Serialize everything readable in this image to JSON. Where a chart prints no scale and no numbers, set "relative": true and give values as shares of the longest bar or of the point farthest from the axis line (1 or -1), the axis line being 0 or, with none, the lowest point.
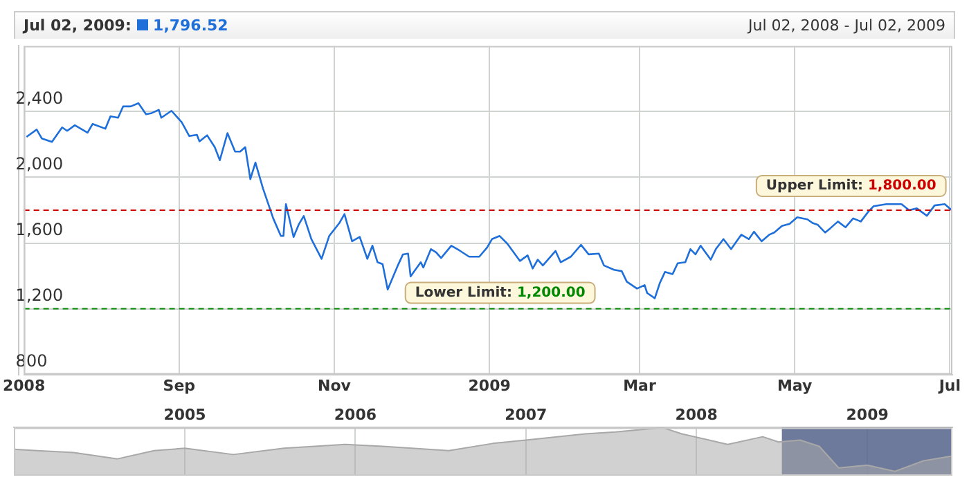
{
  "chart_data": [
    {
      "type": "line",
      "annotations": [
        "Jul 02, 2009:",
        "1,796.52",
        "Jul 02, 2008 - Jul 02, 2009"
      ],
      "x": [
        "2008-07-03",
        "2008-07-07",
        "2008-07-09",
        "2008-07-13",
        "2008-07-17",
        "2008-07-19",
        "2008-07-22",
        "2008-07-27",
        "2008-07-29",
        "2008-08-03",
        "2008-08-05",
        "2008-08-08",
        "2008-08-10",
        "2008-08-13",
        "2008-08-16",
        "2008-08-19",
        "2008-08-21",
        "2008-08-24",
        "2008-08-25",
        "2008-08-29",
        "2008-09-02",
        "2008-09-05",
        "2008-09-08",
        "2008-09-09",
        "2008-09-12",
        "2008-09-15",
        "2008-09-17",
        "2008-09-20",
        "2008-09-23",
        "2008-09-25",
        "2008-09-27",
        "2008-09-29",
        "2008-10-01",
        "2008-10-04",
        "2008-10-08",
        "2008-10-11",
        "2008-10-12",
        "2008-10-13",
        "2008-10-16",
        "2008-10-18",
        "2008-10-20",
        "2008-10-23",
        "2008-10-27",
        "2008-10-30",
        "2008-11-03",
        "2008-11-05",
        "2008-11-08",
        "2008-11-11",
        "2008-11-14",
        "2008-11-16",
        "2008-11-18",
        "2008-11-20",
        "2008-11-22",
        "2008-11-26",
        "2008-11-28",
        "2008-11-30",
        "2008-12-01",
        "2008-12-05",
        "2008-12-06",
        "2008-12-09",
        "2008-12-11",
        "2008-12-13",
        "2008-12-17",
        "2008-12-20",
        "2008-12-24",
        "2008-12-28",
        "2008-12-31",
        "2009-01-02",
        "2009-01-05",
        "2009-01-08",
        "2009-01-13",
        "2009-01-16",
        "2009-01-18",
        "2009-01-20",
        "2009-01-22",
        "2009-01-27",
        "2009-01-29",
        "2009-02-02",
        "2009-02-06",
        "2009-02-09",
        "2009-02-13",
        "2009-02-15",
        "2009-02-19",
        "2009-02-22",
        "2009-02-24",
        "2009-02-28",
        "2009-03-03",
        "2009-03-04",
        "2009-03-07",
        "2009-03-09",
        "2009-03-11",
        "2009-03-14",
        "2009-03-16",
        "2009-03-19",
        "2009-03-21",
        "2009-03-23",
        "2009-03-25",
        "2009-03-29",
        "2009-03-31",
        "2009-04-03",
        "2009-04-06",
        "2009-04-10",
        "2009-04-13",
        "2009-04-15",
        "2009-04-18",
        "2009-04-21",
        "2009-04-23",
        "2009-04-26",
        "2009-04-29",
        "2009-05-02",
        "2009-05-06",
        "2009-05-08",
        "2009-05-10",
        "2009-05-13",
        "2009-05-15",
        "2009-05-18",
        "2009-05-21",
        "2009-05-24",
        "2009-05-27",
        "2009-05-30",
        "2009-06-01",
        "2009-06-06",
        "2009-06-12",
        "2009-06-15",
        "2009-06-18",
        "2009-06-22",
        "2009-06-25",
        "2009-06-29",
        "2009-07-02"
      ],
      "series": [
        {
          "color": "#1e6fd9",
          "values": [
            2246,
            2291,
            2237,
            2216,
            2304,
            2283,
            2317,
            2272,
            2325,
            2296,
            2371,
            2363,
            2432,
            2432,
            2451,
            2384,
            2390,
            2411,
            2363,
            2405,
            2336,
            2251,
            2259,
            2219,
            2256,
            2184,
            2104,
            2269,
            2157,
            2157,
            2184,
            1989,
            2090,
            1931,
            1750,
            1643,
            1643,
            1837,
            1637,
            1712,
            1765,
            1624,
            1504,
            1643,
            1722,
            1776,
            1611,
            1637,
            1504,
            1584,
            1483,
            1472,
            1317,
            1464,
            1531,
            1536,
            1397,
            1483,
            1451,
            1563,
            1544,
            1509,
            1584,
            1557,
            1517,
            1517,
            1571,
            1624,
            1643,
            1597,
            1491,
            1525,
            1445,
            1499,
            1464,
            1552,
            1483,
            1517,
            1589,
            1531,
            1536,
            1464,
            1437,
            1429,
            1365,
            1323,
            1344,
            1296,
            1264,
            1357,
            1424,
            1411,
            1477,
            1483,
            1563,
            1531,
            1584,
            1499,
            1563,
            1624,
            1563,
            1651,
            1624,
            1669,
            1611,
            1651,
            1664,
            1704,
            1717,
            1757,
            1744,
            1722,
            1712,
            1664,
            1690,
            1731,
            1696,
            1750,
            1731,
            1792,
            1824,
            1837,
            1837,
            1800,
            1811,
            1766,
            1829,
            1837,
            1796.52
          ]
        }
      ],
      "xlim": [
        "2008-07-02",
        "2009-07-02"
      ],
      "xticks": [
        {
          "value": "2008-07-02",
          "label": "2008"
        },
        {
          "value": "2008-09-01",
          "label": "Sep"
        },
        {
          "value": "2008-11-01",
          "label": "Nov"
        },
        {
          "value": "2009-01-01",
          "label": "2009"
        },
        {
          "value": "2009-03-01",
          "label": "Mar"
        },
        {
          "value": "2009-05-01",
          "label": "May"
        },
        {
          "value": "2009-07-01",
          "label": "Jul"
        }
      ],
      "ylim": [
        800,
        2800
      ],
      "yticks": [
        800,
        {
          "value": 1200,
          "label": "1,200"
        },
        {
          "value": 1600,
          "label": "1,600"
        },
        {
          "value": 2000,
          "label": "2,000"
        },
        {
          "value": 2400,
          "label": "2,400"
        }
      ],
      "ref_lines": [
        {
          "axis": "y",
          "value": 1800,
          "label": "Upper Limit: 1,800.00",
          "color": "#cc0000",
          "line_style": "dashed"
        },
        {
          "axis": "y",
          "value": 1200,
          "label": "Lower Limit: 1,200.00",
          "color": "#008800",
          "line_style": "dashed"
        }
      ],
      "grid": true,
      "marker": "none",
      "line_style": "solid"
    },
    {
      "type": "area",
      "relative": true,
      "x": [
        "2004-01-01",
        "2004-02-20",
        "2004-05-08",
        "2004-08-10",
        "2004-10-27",
        "2005-01-01",
        "2005-04-15",
        "2005-08-01",
        "2005-12-10",
        "2006-03-01",
        "2006-07-20",
        "2006-10-22",
        "2007-01-01",
        "2007-05-08",
        "2007-07-12",
        "2007-10-20",
        "2007-12-01",
        "2008-03-08",
        "2008-05-22",
        "2008-06-25",
        "2008-08-10",
        "2008-09-20",
        "2008-11-01",
        "2009-01-01",
        "2009-03-01",
        "2009-05-01",
        "2009-07-02"
      ],
      "series": [
        {
          "color": "#a8a8a8",
          "values": [
            0.55,
            0.52,
            0.48,
            0.35,
            0.52,
            0.57,
            0.44,
            0.57,
            0.65,
            0.61,
            0.52,
            0.67,
            0.74,
            0.87,
            0.91,
            1,
            0.87,
            0.65,
            0.81,
            0.7,
            0.74,
            0.61,
            0.16,
            0.22,
            0.09,
            0.31,
            0.41
          ]
        }
      ],
      "xlim": [
        "2004-01-01",
        "2009-07-02"
      ],
      "xticks": [
        {
          "value": "2005-01-01",
          "label": "2005"
        },
        {
          "value": "2006-01-01",
          "label": "2006"
        },
        {
          "value": "2007-01-01",
          "label": "2007"
        },
        {
          "value": "2008-01-01",
          "label": "2008"
        },
        {
          "value": "2009-01-01",
          "label": "2009"
        }
      ],
      "bands": [
        {
          "axis": "x",
          "from": "2008-07-02",
          "to": "2009-07-02",
          "color": "#55638a"
        }
      ],
      "tick_labels": "x",
      "grid": "x",
      "marker": "none"
    }
  ]
}
